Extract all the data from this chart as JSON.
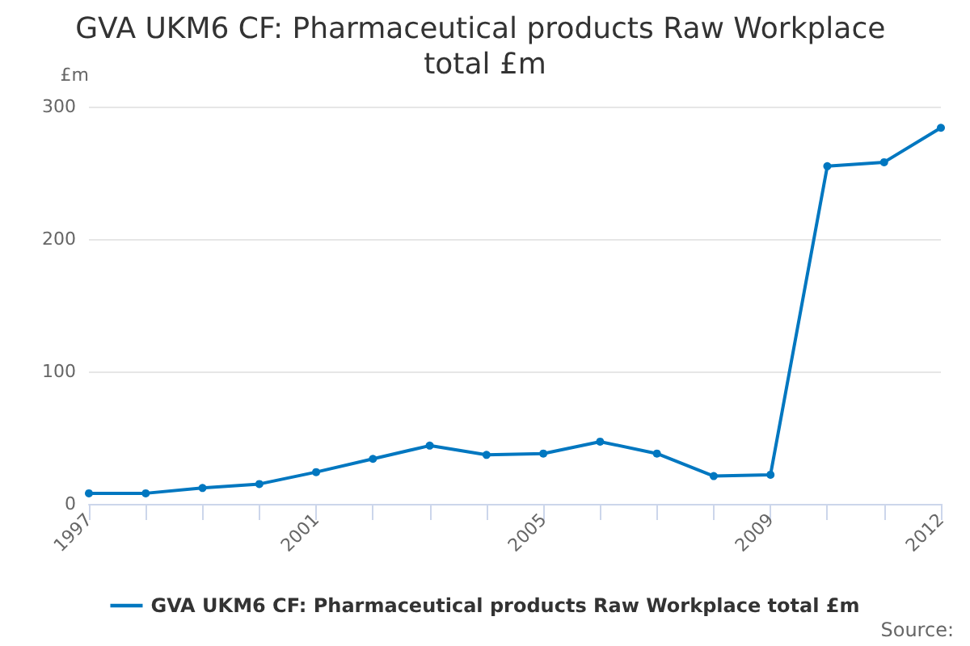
{
  "chart_data": {
    "type": "line",
    "title": "GVA UKM6 CF: Pharmaceutical products Raw Workplace total £m",
    "ylabel": "£m",
    "categories": [
      "1997",
      null,
      null,
      null,
      "2001",
      null,
      null,
      null,
      "2005",
      null,
      null,
      null,
      "2009",
      null,
      null,
      "2012"
    ],
    "series": [
      {
        "name": "GVA UKM6 CF: Pharmaceutical products Raw Workplace total £m",
        "color": "#0077c0",
        "values": [
          8,
          8,
          12,
          15,
          24,
          34,
          44,
          37,
          38,
          47,
          38,
          21,
          22,
          255,
          258,
          284
        ]
      }
    ],
    "ylim": [
      0,
      300
    ],
    "yticks": [
      0,
      100,
      200,
      300
    ],
    "grid": "y",
    "legend": "bottom",
    "marker": "circle",
    "annotations": [
      "Source:"
    ]
  }
}
